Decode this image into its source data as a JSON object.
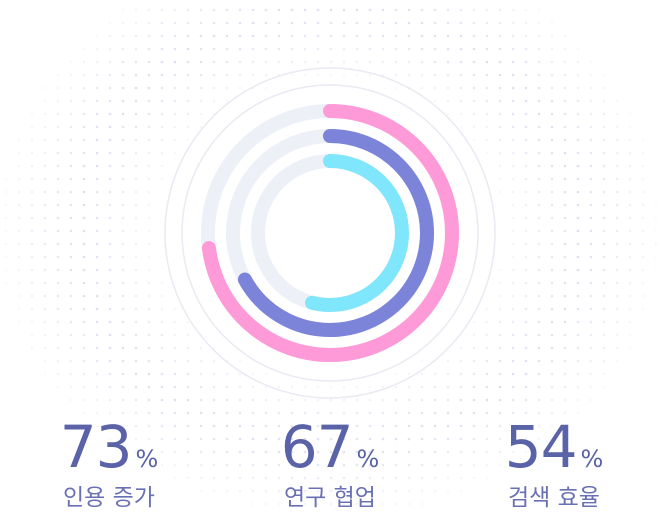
{
  "colors": {
    "outer": "#ff9ad8",
    "middle": "#7b84d8",
    "inner": "#7fe6fb",
    "track": "#eef0f8",
    "guide": "#e9eaf2",
    "dot": "#d9dcef",
    "text": "#5a62a8"
  },
  "chart_data": {
    "type": "radial-bar",
    "unit": "%",
    "max": 100,
    "categories": [
      "인용 증가",
      "연구 협업",
      "검색 효율"
    ],
    "values": [
      73,
      67,
      54
    ]
  },
  "stats": [
    {
      "value": "73",
      "unit": "%",
      "label": "인용 증가"
    },
    {
      "value": "67",
      "unit": "%",
      "label": "연구 협업"
    },
    {
      "value": "54",
      "unit": "%",
      "label": "검색 효율"
    }
  ]
}
